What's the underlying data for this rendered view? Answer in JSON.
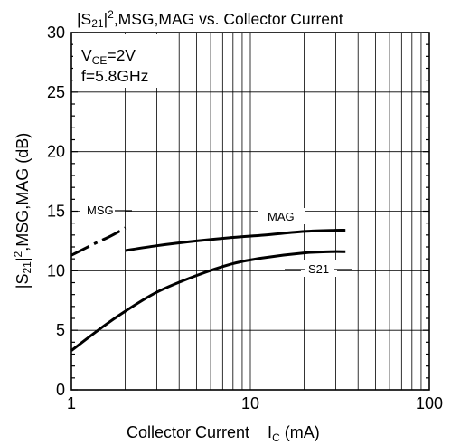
{
  "chart_data": {
    "type": "line",
    "title": {
      "part1": "|S",
      "sub": "21",
      "part2": "|",
      "sup": "2",
      "part3": ",MSG,MAG vs. Collector Current"
    },
    "xlabel": {
      "part1": "Collector Current",
      "sym": "I",
      "sub": "C",
      "unit": " (mA)"
    },
    "ylabel": {
      "part1": "|S",
      "sub": "21",
      "part2": "|",
      "sup": "2",
      "part3": ",MSG,MAG (dB)"
    },
    "x_scale": "log",
    "xlim": [
      1,
      100
    ],
    "ylim": [
      0,
      30
    ],
    "x_ticks": [
      "1",
      "10",
      "100"
    ],
    "y_ticks": [
      "0",
      "5",
      "10",
      "15",
      "20",
      "25",
      "30"
    ],
    "grid": true,
    "conditions": {
      "vce_prefix": "V",
      "vce_sub": "CE",
      "vce_value": "=2V",
      "freq": "f=5.8GHz"
    },
    "series": [
      {
        "name": "MSG",
        "style": "dashdot",
        "points": [
          [
            1,
            11.3
          ],
          [
            1.2,
            11.9
          ],
          [
            1.4,
            12.4
          ],
          [
            1.6,
            12.8
          ],
          [
            1.8,
            13.2
          ],
          [
            2,
            13.6
          ]
        ]
      },
      {
        "name": "MAG",
        "style": "solid",
        "points": [
          [
            2,
            11.7
          ],
          [
            3,
            12.1
          ],
          [
            5,
            12.5
          ],
          [
            8,
            12.8
          ],
          [
            12,
            13.0
          ],
          [
            20,
            13.3
          ],
          [
            30,
            13.4
          ],
          [
            34,
            13.4
          ]
        ]
      },
      {
        "name": "S21",
        "style": "solid",
        "points": [
          [
            1,
            3.3
          ],
          [
            1.5,
            5.3
          ],
          [
            2,
            6.6
          ],
          [
            3,
            8.2
          ],
          [
            5,
            9.6
          ],
          [
            8,
            10.6
          ],
          [
            12,
            11.1
          ],
          [
            20,
            11.5
          ],
          [
            28,
            11.6
          ],
          [
            34,
            11.6
          ]
        ]
      }
    ]
  }
}
